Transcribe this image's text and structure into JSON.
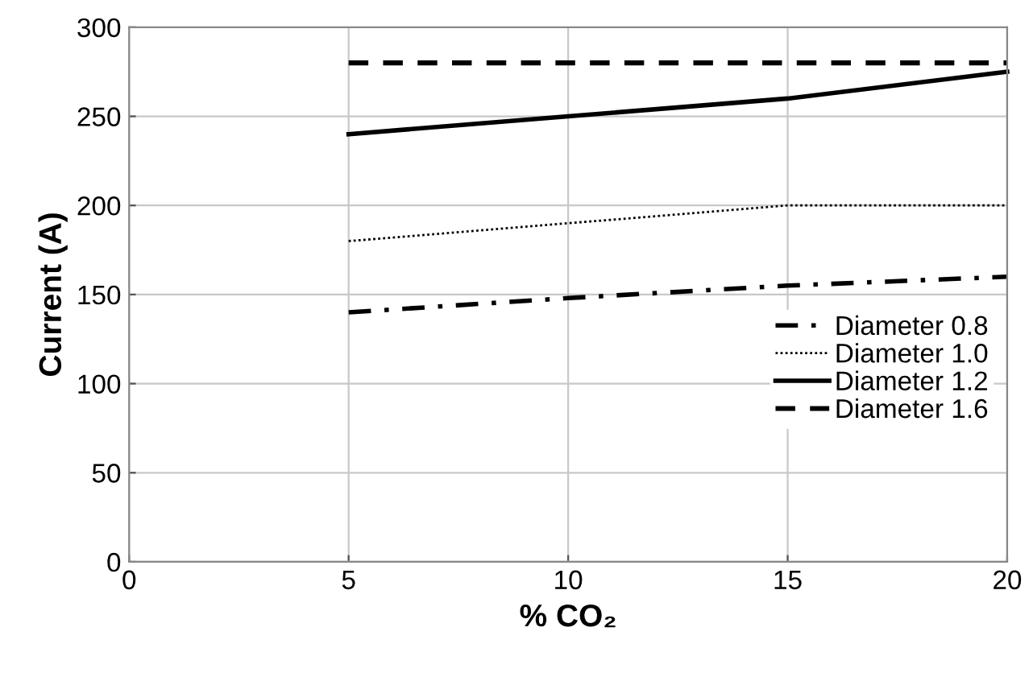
{
  "chart_data": {
    "type": "line",
    "xlabel": "% CO₂",
    "ylabel": "Current (A)",
    "x": [
      5,
      10,
      15,
      20
    ],
    "series": [
      {
        "name": "Diameter 0.8",
        "color": "#000000",
        "line_style": "dashdot",
        "values": [
          140,
          148,
          155,
          160
        ]
      },
      {
        "name": "Diameter 1.0",
        "color": "#000000",
        "line_style": "dotted",
        "values": [
          180,
          190,
          200,
          200
        ]
      },
      {
        "name": "Diameter 1.2",
        "color": "#000000",
        "line_style": "solid",
        "values": [
          240,
          250,
          260,
          275
        ]
      },
      {
        "name": "Diameter 1.6",
        "color": "#000000",
        "line_style": "dashed",
        "values": [
          280,
          280,
          280,
          280
        ]
      }
    ],
    "xlim": [
      0,
      20
    ],
    "xticks": [
      0,
      5,
      10,
      15,
      20
    ],
    "ylim": [
      0,
      300
    ],
    "yticks": [
      0,
      50,
      100,
      150,
      200,
      250,
      300
    ],
    "grid": true,
    "legend": "right"
  }
}
